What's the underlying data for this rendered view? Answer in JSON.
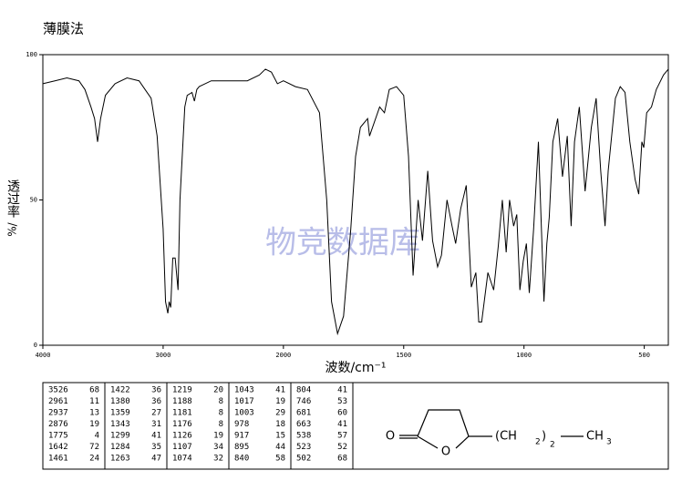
{
  "chart_data": {
    "type": "line",
    "title": "薄膜法",
    "x_label": "波数/cm⁻¹",
    "y_label": "透过率",
    "y_unit": "%/",
    "watermark": "物竞数据库",
    "xlim": [
      4000,
      400
    ],
    "ylim": [
      0,
      100
    ],
    "xticks": [
      4000,
      3000,
      2000,
      1500,
      1000,
      500
    ],
    "yticks": [
      0,
      50,
      100
    ],
    "x": [
      4000,
      3900,
      3800,
      3700,
      3650,
      3600,
      3570,
      3545,
      3520,
      3480,
      3400,
      3300,
      3200,
      3150,
      3100,
      3050,
      3000,
      2980,
      2961,
      2950,
      2937,
      2920,
      2900,
      2876,
      2860,
      2820,
      2800,
      2760,
      2740,
      2720,
      2700,
      2600,
      2500,
      2400,
      2300,
      2200,
      2150,
      2100,
      2050,
      2000,
      1950,
      1900,
      1850,
      1820,
      1800,
      1775,
      1750,
      1720,
      1700,
      1680,
      1650,
      1642,
      1600,
      1580,
      1560,
      1530,
      1500,
      1480,
      1461,
      1440,
      1422,
      1400,
      1380,
      1359,
      1343,
      1320,
      1299,
      1284,
      1263,
      1240,
      1219,
      1200,
      1188,
      1181,
      1176,
      1150,
      1126,
      1107,
      1090,
      1074,
      1060,
      1043,
      1030,
      1017,
      1003,
      990,
      978,
      960,
      940,
      917,
      905,
      895,
      880,
      860,
      840,
      820,
      804,
      790,
      770,
      746,
      720,
      700,
      681,
      663,
      650,
      620,
      600,
      580,
      560,
      538,
      523,
      510,
      502,
      490,
      470,
      450,
      420,
      400
    ],
    "series": [
      {
        "color": "#000000",
        "values": [
          90,
          91,
          92,
          91,
          88,
          82,
          78,
          70,
          78,
          86,
          90,
          92,
          91,
          88,
          85,
          72,
          40,
          15,
          11,
          15,
          13,
          30,
          30,
          19,
          50,
          82,
          86,
          87,
          84,
          88,
          89,
          91,
          91,
          91,
          91,
          93,
          95,
          94,
          90,
          91,
          89,
          88,
          80,
          50,
          15,
          4,
          10,
          40,
          65,
          75,
          78,
          72,
          82,
          80,
          88,
          89,
          86,
          65,
          24,
          50,
          36,
          60,
          36,
          27,
          31,
          50,
          41,
          35,
          47,
          55,
          20,
          25,
          8,
          8,
          8,
          25,
          19,
          34,
          50,
          32,
          50,
          41,
          45,
          19,
          29,
          35,
          18,
          40,
          70,
          15,
          35,
          44,
          70,
          78,
          58,
          72,
          41,
          70,
          82,
          53,
          75,
          85,
          60,
          41,
          60,
          85,
          89,
          87,
          70,
          57,
          52,
          70,
          68,
          80,
          82,
          88,
          93,
          95
        ]
      }
    ]
  },
  "peak_table": [
    [
      [
        "3526",
        "68"
      ],
      [
        "2961",
        "11"
      ],
      [
        "2937",
        "13"
      ],
      [
        "2876",
        "19"
      ],
      [
        "1775",
        "4"
      ],
      [
        "1642",
        "72"
      ],
      [
        "1461",
        "24"
      ]
    ],
    [
      [
        "1422",
        "36"
      ],
      [
        "1380",
        "36"
      ],
      [
        "1359",
        "27"
      ],
      [
        "1343",
        "31"
      ],
      [
        "1299",
        "41"
      ],
      [
        "1284",
        "35"
      ],
      [
        "1263",
        "47"
      ]
    ],
    [
      [
        "1219",
        "20"
      ],
      [
        "1188",
        "8"
      ],
      [
        "1181",
        "8"
      ],
      [
        "1176",
        "8"
      ],
      [
        "1126",
        "19"
      ],
      [
        "1107",
        "34"
      ],
      [
        "1074",
        "32"
      ]
    ],
    [
      [
        "1043",
        "41"
      ],
      [
        "1017",
        "19"
      ],
      [
        "1003",
        "29"
      ],
      [
        "978",
        "18"
      ],
      [
        "917",
        "15"
      ],
      [
        "895",
        "44"
      ],
      [
        "840",
        "58"
      ]
    ],
    [
      [
        "804",
        "41"
      ],
      [
        "746",
        "53"
      ],
      [
        "681",
        "60"
      ],
      [
        "663",
        "41"
      ],
      [
        "538",
        "57"
      ],
      [
        "523",
        "52"
      ],
      [
        "502",
        "68"
      ]
    ]
  ],
  "structure": {
    "carbonyl_o": "O",
    "ring_o": "O",
    "chain": "(CH",
    "sub1": "2",
    "close": ")",
    "sub2": "2",
    "end": "CH",
    "sub3": "3"
  }
}
